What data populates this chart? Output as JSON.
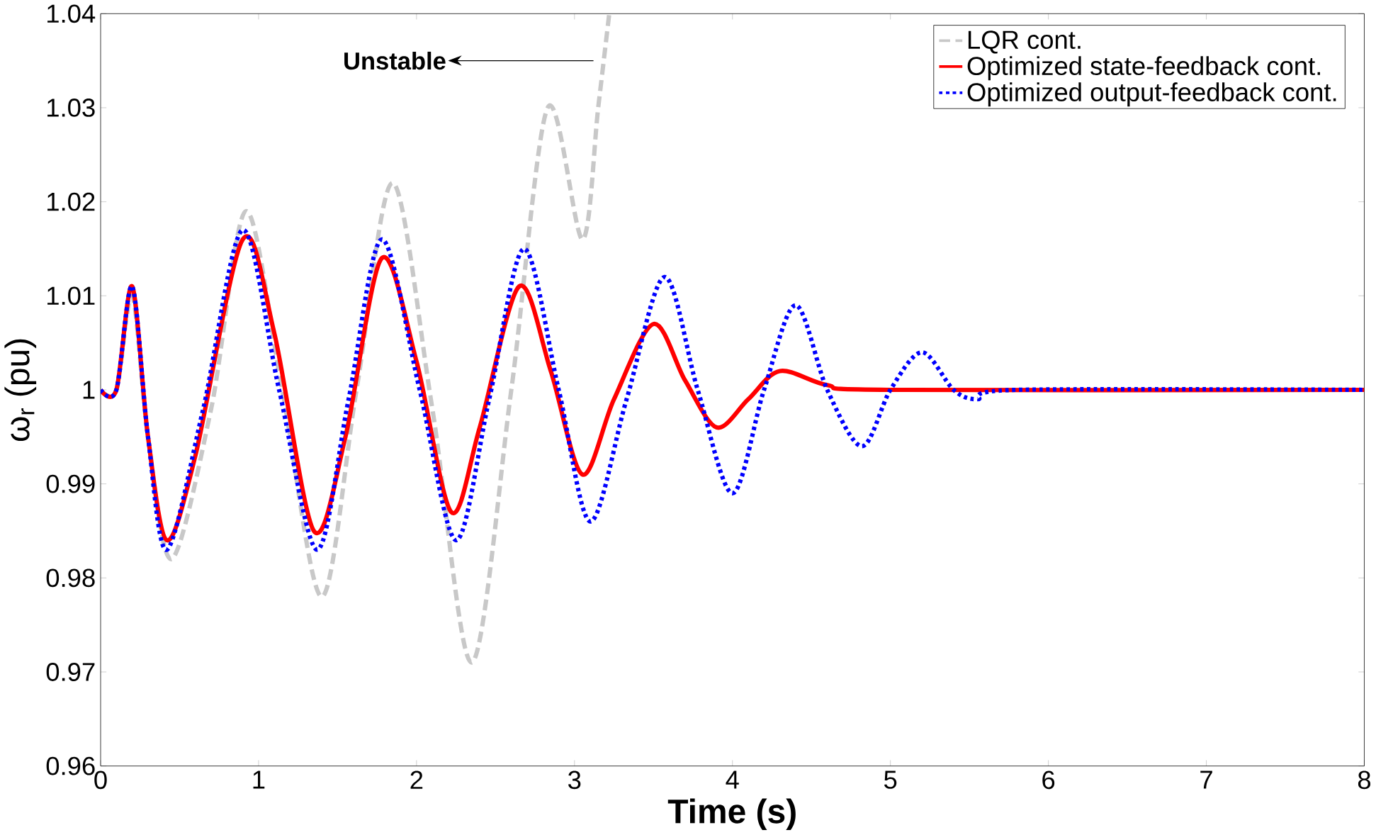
{
  "chart_data": {
    "type": "line",
    "xlabel": "Time (s)",
    "ylabel": "ω$_{r}$ (pu)",
    "xlim": [
      0,
      8
    ],
    "ylim": [
      0.96,
      1.04
    ],
    "xticks": [
      0,
      1,
      2,
      3,
      4,
      5,
      6,
      7,
      8
    ],
    "yticks": [
      0.96,
      0.97,
      0.98,
      0.99,
      1,
      1.01,
      1.02,
      1.03,
      1.04
    ],
    "legend": "top right",
    "grid": false,
    "annotations": [
      "Unstable"
    ],
    "series": [
      {
        "name": "LQR cont.",
        "color": "#c8c8c8",
        "line_style": "dashed",
        "x": [
          0,
          0.1,
          0.2,
          0.3,
          0.45,
          0.7,
          0.92,
          1.15,
          1.4,
          1.62,
          1.85,
          2.1,
          2.35,
          2.6,
          2.83,
          3.05,
          3.15,
          3.22
        ],
        "values": [
          1,
          1,
          1.01,
          0.995,
          0.982,
          0.998,
          1.019,
          1.0,
          0.978,
          1.0,
          1.022,
          0.998,
          0.971,
          1.0,
          1.03,
          1.016,
          1.03,
          1.04
        ]
      },
      {
        "name": "Optimized state-feedback cont.",
        "color": "#ff0000",
        "line_style": "solid",
        "x": [
          0,
          0.1,
          0.2,
          0.3,
          0.42,
          0.6,
          0.9,
          1.1,
          1.35,
          1.55,
          1.78,
          2.0,
          2.22,
          2.4,
          2.65,
          2.85,
          3.05,
          3.25,
          3.5,
          3.7,
          3.9,
          4.1,
          4.3,
          4.6,
          5,
          8
        ],
        "values": [
          1,
          1,
          1.011,
          0.995,
          0.984,
          0.993,
          1.016,
          1.006,
          0.985,
          0.995,
          1.014,
          1.003,
          0.987,
          0.996,
          1.011,
          1.002,
          0.991,
          0.999,
          1.007,
          1.001,
          0.996,
          0.999,
          1.002,
          1.0005,
          1,
          1
        ]
      },
      {
        "name": "Optimized output-feedback cont.",
        "color": "#0000ff",
        "line_style": "dotted",
        "x": [
          0,
          0.1,
          0.2,
          0.3,
          0.42,
          0.65,
          0.9,
          1.13,
          1.37,
          1.57,
          1.78,
          2.02,
          2.25,
          2.46,
          2.68,
          2.9,
          3.1,
          3.33,
          3.57,
          3.78,
          4.0,
          4.2,
          4.4,
          4.6,
          4.82,
          5.0,
          5.2,
          5.4,
          5.55,
          5.8,
          8
        ],
        "values": [
          1,
          1,
          1.011,
          0.995,
          0.983,
          0.998,
          1.017,
          1.0,
          0.983,
          0.999,
          1.016,
          1.0,
          0.984,
          0.999,
          1.015,
          1.0,
          0.986,
          0.999,
          1.012,
          1.0,
          0.989,
          1.0,
          1.009,
          1.0,
          0.994,
          1.0,
          1.004,
          1.0,
          0.999,
          1.0,
          1
        ]
      }
    ]
  }
}
